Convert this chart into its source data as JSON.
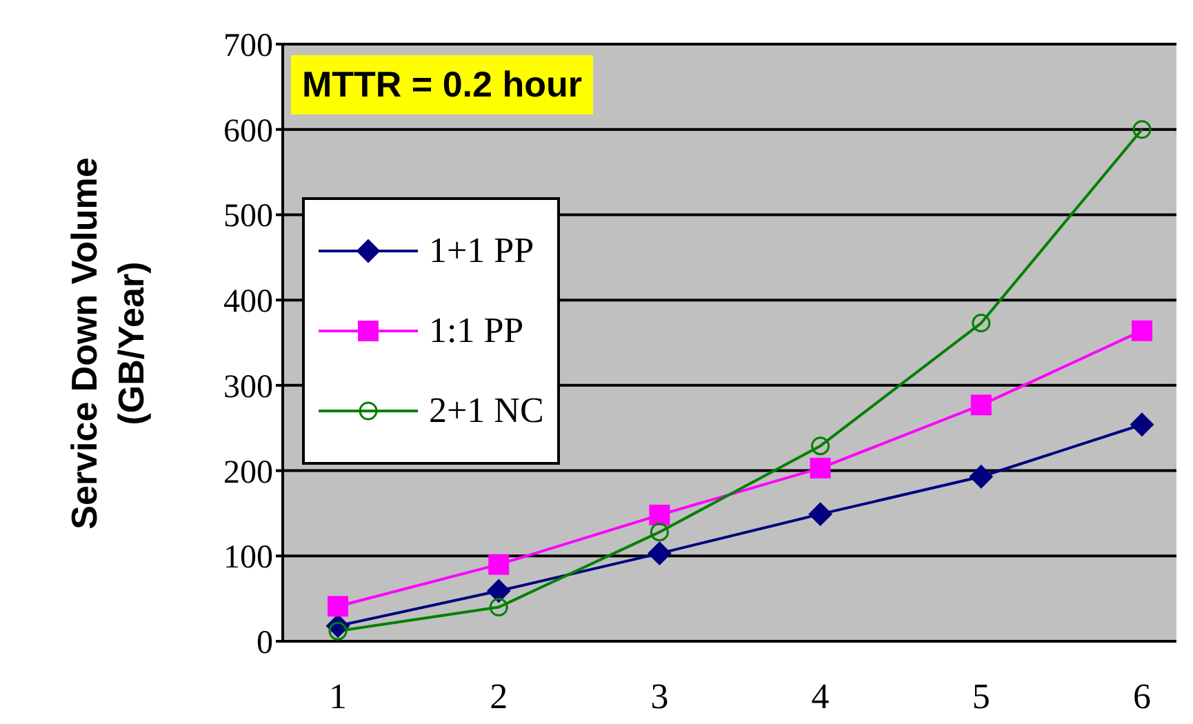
{
  "chart_data": {
    "type": "line",
    "ylabel": "Service Down Volume (GB/Year)",
    "categories": [
      "1",
      "2",
      "3",
      "4",
      "5",
      "6"
    ],
    "series": [
      {
        "name": "1+1 PP",
        "color": "#000080",
        "marker": "diamond",
        "values": [
          18,
          59,
          103,
          149,
          193,
          254
        ]
      },
      {
        "name": "1:1 PP",
        "color": "#ff00ff",
        "marker": "square",
        "values": [
          41,
          90,
          148,
          203,
          277,
          364
        ]
      },
      {
        "name": "2+1 NC",
        "color": "#008000",
        "marker": "circle",
        "values": [
          12,
          40,
          128,
          229,
          373,
          600
        ]
      }
    ],
    "ylim": [
      0,
      700
    ],
    "yticks": [
      0,
      100,
      200,
      300,
      400,
      500,
      600,
      700
    ],
    "grid": "y",
    "legend": "top left",
    "annotations": [
      "MTTR = 0.2 hour"
    ]
  }
}
